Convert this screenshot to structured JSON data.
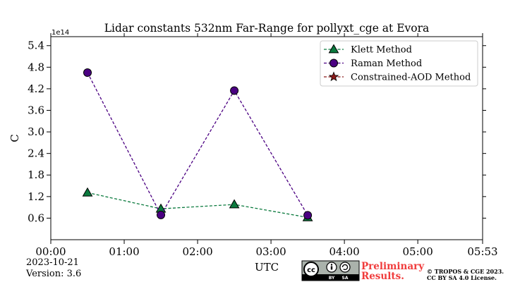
{
  "chart_data": {
    "type": "line",
    "title": "Lidar constants 532nm Far-Range for pollyxt_cge at Evora",
    "xlabel": "UTC",
    "ylabel": "C",
    "y_exponent_label": "1e14",
    "x_ticks": [
      "00:00",
      "01:00",
      "02:00",
      "03:00",
      "04:00",
      "05:00",
      "05:53"
    ],
    "x_tick_values_hours": [
      0,
      1,
      2,
      3,
      4,
      5,
      5.883
    ],
    "xlim_hours": [
      0,
      5.883
    ],
    "y_ticks": [
      "0.6",
      "1.2",
      "1.8",
      "2.4",
      "3.0",
      "3.6",
      "4.2",
      "4.8",
      "5.4"
    ],
    "y_tick_values": [
      0.6,
      1.2,
      1.8,
      2.4,
      3.0,
      3.6,
      4.2,
      4.8,
      5.4
    ],
    "ylim": [
      0,
      5.65
    ],
    "y_unit_multiplier": "1e14",
    "legend_position": "upper right",
    "grid": false,
    "series": [
      {
        "name": "Klett Method",
        "color": "#0b7a3e",
        "marker": "triangle",
        "linestyle": "dashed",
        "x": [
          0.5,
          1.5,
          2.5,
          3.5
        ],
        "x_labels": [
          "00:30",
          "01:30",
          "02:30",
          "03:30"
        ],
        "y": [
          1.31,
          0.86,
          0.98,
          0.62
        ]
      },
      {
        "name": "Raman Method",
        "color": "#4b0082",
        "marker": "circle",
        "linestyle": "dashed",
        "x": [
          0.5,
          1.5,
          2.5,
          3.5
        ],
        "x_labels": [
          "00:30",
          "01:30",
          "02:30",
          "03:30"
        ],
        "y": [
          4.65,
          0.69,
          4.15,
          0.68
        ]
      },
      {
        "name": "Constrained-AOD Method",
        "color": "#8b1a1a",
        "marker": "star",
        "linestyle": "dashed",
        "x": [],
        "y": []
      }
    ]
  },
  "footer": {
    "date": "2023-10-21",
    "version": "Version: 3.6",
    "preliminary_line1": "Preliminary",
    "preliminary_line2": "Results.",
    "copyright_line1": "© TROPOS & CGE 2023.",
    "copyright_line2": "CC BY SA 4.0 License.",
    "cc_badge_labels": [
      "cc",
      "BY",
      "SA"
    ]
  }
}
